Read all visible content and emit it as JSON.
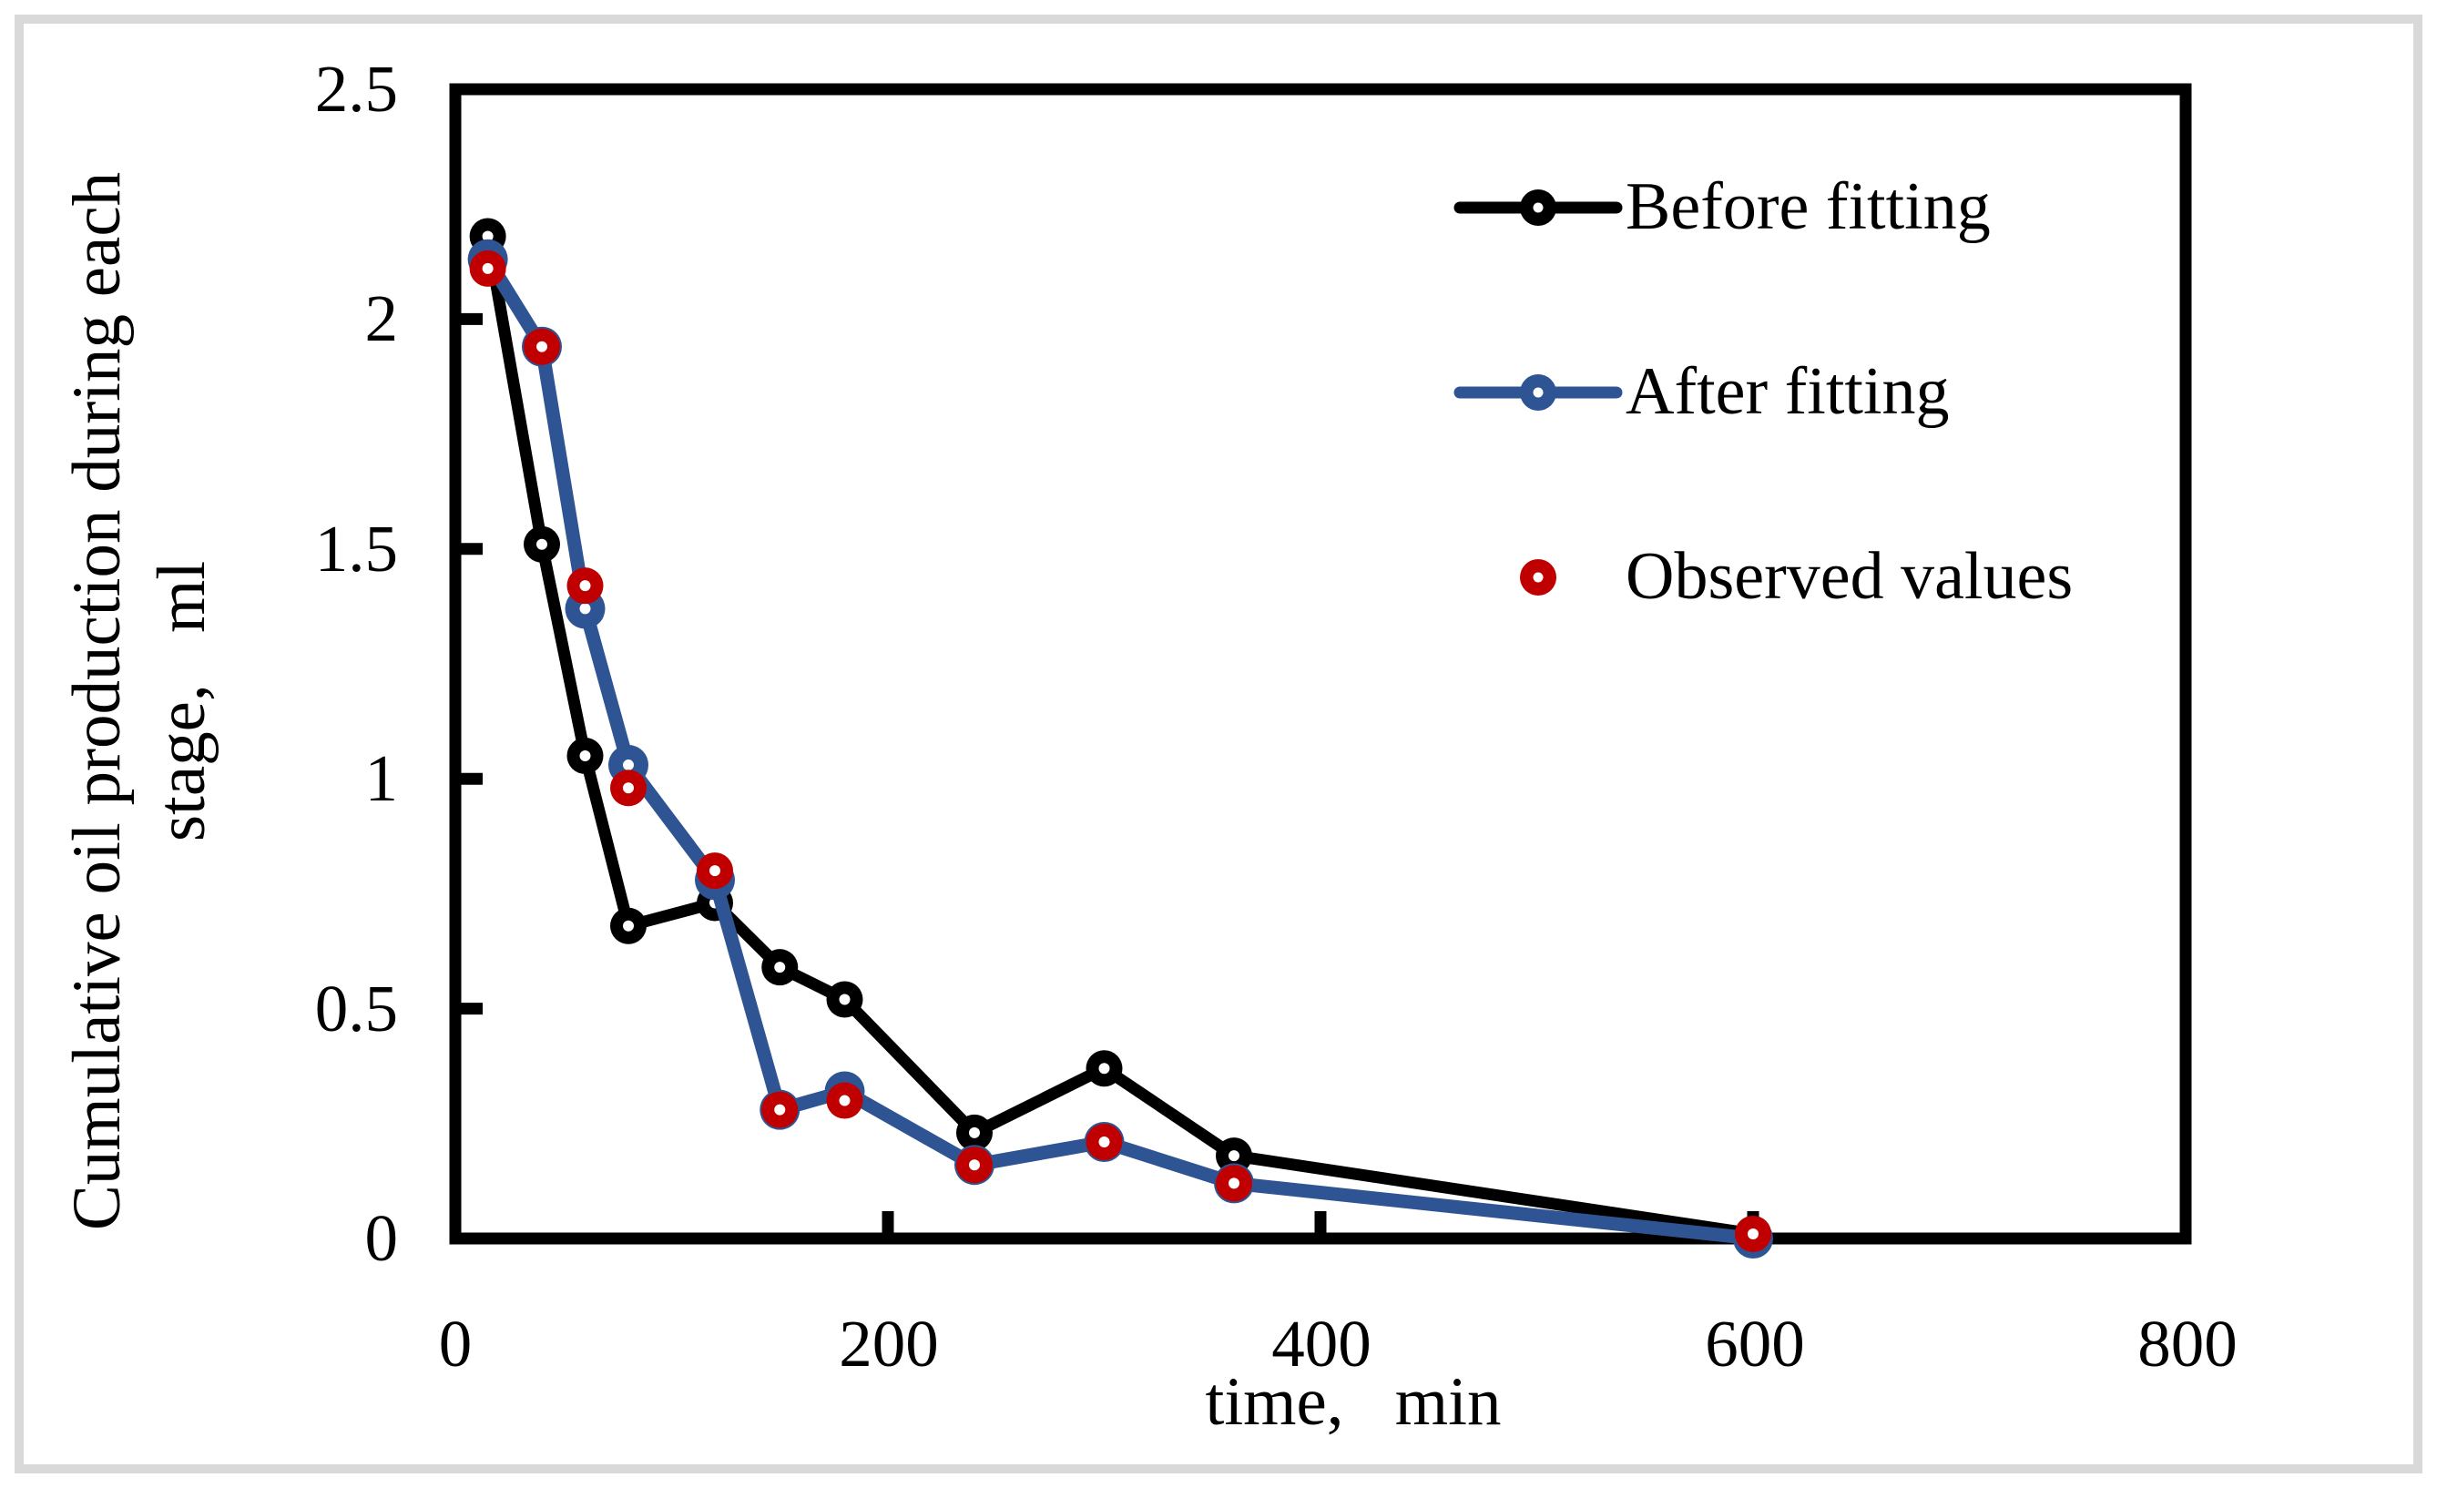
{
  "figure": {
    "background_color": "#FFFFFF",
    "outer_border_color": "#D9D9D9",
    "frame_color": "#000000"
  },
  "chart_data": {
    "type": "line",
    "title": "",
    "xlabel": "time,   min",
    "ylabel_line1": "Cumulative oil production during each",
    "ylabel_line2": "stage,   ml",
    "xlim": [
      0,
      800
    ],
    "ylim": [
      0,
      2.5
    ],
    "grid": false,
    "legend_position": "upper right",
    "x_tick_labels": [
      "0",
      "200",
      "400",
      "600",
      "800"
    ],
    "y_tick_labels": [
      "0",
      "0.5",
      "1",
      "1.5",
      "2",
      "2.5"
    ],
    "x_tick_values": [
      0,
      200,
      400,
      600,
      800
    ],
    "y_tick_values": [
      0,
      0.5,
      1,
      1.5,
      2,
      2.5
    ],
    "x": [
      15,
      40,
      60,
      80,
      120,
      150,
      180,
      240,
      300,
      360,
      600
    ],
    "series": [
      {
        "name": "Before fitting",
        "color": "#000000",
        "line": true,
        "line_width": 13,
        "marker": "circle",
        "marker_radius": 20,
        "dot_radius": 6,
        "values": [
          2.18,
          1.51,
          1.05,
          0.68,
          0.73,
          0.59,
          0.52,
          0.23,
          0.37,
          0.18,
          0.01
        ]
      },
      {
        "name": "After fitting",
        "color": "#2E5493",
        "line": true,
        "line_width": 15,
        "marker": "circle",
        "marker_radius": 22,
        "dot_radius": 6,
        "values": [
          2.13,
          1.94,
          1.37,
          1.03,
          0.78,
          0.28,
          0.32,
          0.16,
          0.21,
          0.12,
          0.0
        ]
      },
      {
        "name": "Observed values",
        "color": "#C00000",
        "line": false,
        "line_width": 0,
        "marker": "circle",
        "marker_radius": 20,
        "dot_radius": 6,
        "values": [
          2.11,
          1.94,
          1.42,
          0.98,
          0.8,
          0.28,
          0.3,
          0.16,
          0.21,
          0.12,
          0.01
        ]
      }
    ]
  }
}
